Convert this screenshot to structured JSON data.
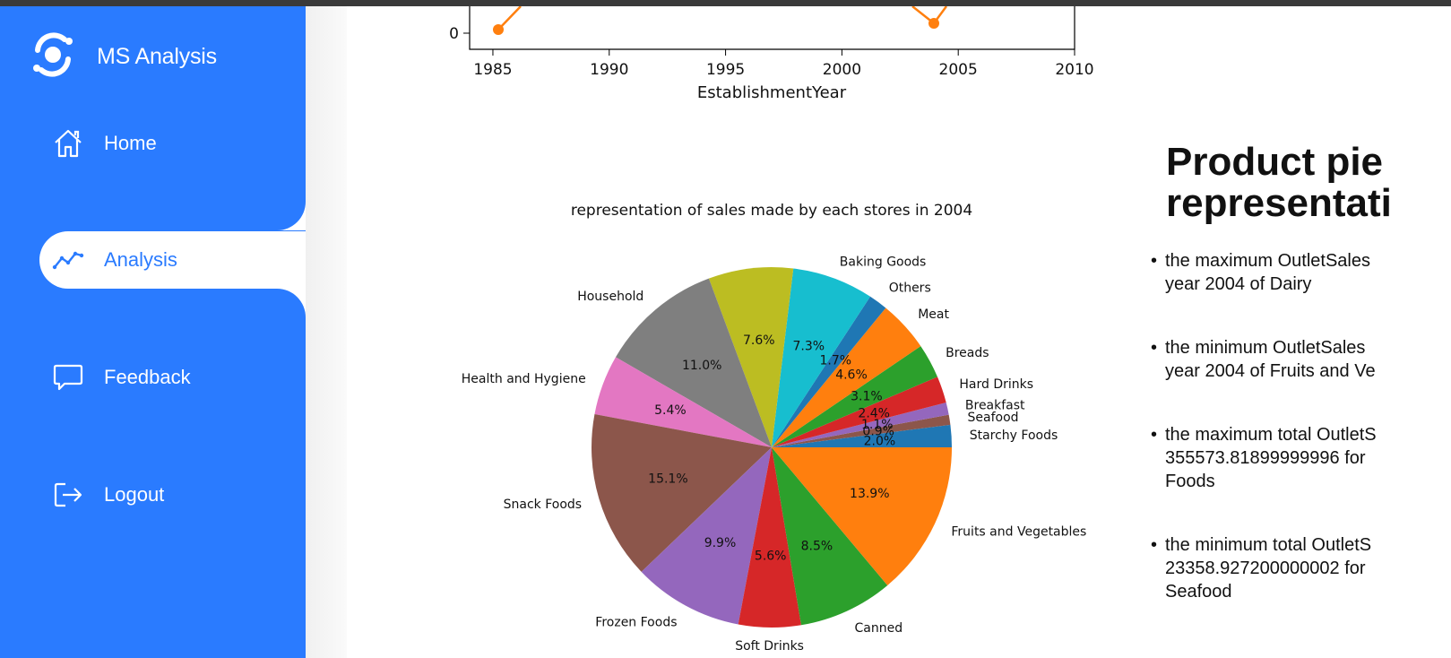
{
  "sidebar": {
    "brand": "MS Analysis",
    "items": [
      {
        "label": "Home",
        "icon": "home-icon"
      },
      {
        "label": "Analysis",
        "icon": "trend-icon",
        "active": true
      },
      {
        "label": "Feedback",
        "icon": "chat-icon"
      },
      {
        "label": "Logout",
        "icon": "logout-icon"
      }
    ],
    "colors": {
      "accent": "#2a7bff",
      "text": "#ffffff"
    }
  },
  "top_chart": {
    "xlabel": "EstablishmentYear",
    "ytick_visible": "0",
    "xticks": [
      "1985",
      "1990",
      "1995",
      "2000",
      "2005",
      "2010"
    ]
  },
  "chart_data": [
    {
      "type": "line",
      "xlabel": "EstablishmentYear",
      "visible_points": [
        {
          "x": 1985,
          "y": 0
        },
        {
          "x": 2004,
          "y": 0
        }
      ],
      "xlim": [
        1984,
        2010
      ],
      "series_color": "#ff7f0e"
    },
    {
      "type": "pie",
      "title": "representation of sales made by each stores in 2004",
      "slices": [
        {
          "label": "Starchy Foods",
          "pct": "2.0%",
          "value": 2.0,
          "color": "#1f77b4"
        },
        {
          "label": "Seafood",
          "pct": "0.9%",
          "value": 0.9,
          "color": "#8c564b"
        },
        {
          "label": "Breakfast",
          "pct": "1.1%",
          "value": 1.1,
          "color": "#9467bd"
        },
        {
          "label": "Hard Drinks",
          "pct": "2.4%",
          "value": 2.4,
          "color": "#d62728"
        },
        {
          "label": "Breads",
          "pct": "3.1%",
          "value": 3.1,
          "color": "#2ca02c"
        },
        {
          "label": "Meat",
          "pct": "4.6%",
          "value": 4.6,
          "color": "#ff7f0e"
        },
        {
          "label": "Others",
          "pct": "1.7%",
          "value": 1.7,
          "color": "#1f77b4"
        },
        {
          "label": "Baking Goods",
          "pct": "7.3%",
          "value": 7.3,
          "color": "#17becf"
        },
        {
          "label": "",
          "pct": "7.6%",
          "value": 7.6,
          "color": "#bcbd22"
        },
        {
          "label": "Household",
          "pct": "11.0%",
          "value": 11.0,
          "color": "#7f7f7f"
        },
        {
          "label": "Health and Hygiene",
          "pct": "5.4%",
          "value": 5.4,
          "color": "#e377c2"
        },
        {
          "label": "Snack Foods",
          "pct": "15.1%",
          "value": 15.1,
          "color": "#8c564b"
        },
        {
          "label": "Frozen Foods",
          "pct": "9.9%",
          "value": 9.9,
          "color": "#9467bd"
        },
        {
          "label": "Soft Drinks",
          "pct": "5.6%",
          "value": 5.6,
          "color": "#d62728"
        },
        {
          "label": "Canned",
          "pct": "8.5%",
          "value": 8.5,
          "color": "#2ca02c"
        },
        {
          "label": "Fruits and Vegetables",
          "pct": "13.9%",
          "value": 13.9,
          "color": "#ff7f0e"
        }
      ]
    }
  ],
  "right_panel": {
    "title_line1": "Product pie",
    "title_line2": "representati",
    "bullets": [
      "the maximum OutletSales\nyear 2004 of Dairy",
      "the minimum OutletSales\nyear 2004 of Fruits and Ve",
      "the maximum total OutletS\n355573.81899999996 for \nFoods",
      "the minimum total OutletS\n23358.927200000002 for \nSeafood"
    ]
  }
}
